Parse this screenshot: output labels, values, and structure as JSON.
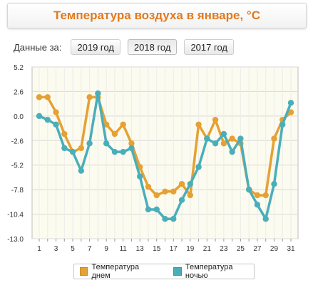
{
  "title": "Температура воздуха в январе, °C",
  "filter": {
    "label": "Данные за:",
    "years": [
      "2019 год",
      "2018 год",
      "2017 год"
    ],
    "active": "2018 год"
  },
  "colors": {
    "day": "#e5a133",
    "night": "#4aaeba",
    "title": "#e07a1e",
    "plot_bg": "#fcfbef"
  },
  "chart_data": {
    "type": "line",
    "x": [
      1,
      2,
      3,
      4,
      5,
      6,
      7,
      8,
      9,
      10,
      11,
      12,
      13,
      14,
      15,
      16,
      17,
      18,
      19,
      20,
      21,
      22,
      23,
      24,
      25,
      26,
      27,
      28,
      29,
      30,
      31
    ],
    "x_ticks": [
      1,
      3,
      5,
      7,
      9,
      11,
      13,
      15,
      17,
      19,
      21,
      23,
      25,
      27,
      29,
      31
    ],
    "y_ticks": [
      5.2,
      2.6,
      0.0,
      -2.6,
      -5.2,
      -7.8,
      -10.4,
      -13.0
    ],
    "y_tick_labels": [
      "5.2",
      "2.6",
      "0.0",
      "-2.6",
      "-5.2",
      "-7.8",
      "-10.4",
      "-13.0"
    ],
    "ylim": [
      -13.0,
      5.2
    ],
    "grid": true,
    "legend_position": "bottom",
    "series": [
      {
        "name": "Температура днем",
        "color": "#e5a133",
        "values": [
          2.0,
          2.0,
          0.4,
          -1.9,
          -3.8,
          -3.4,
          2.0,
          2.0,
          -0.9,
          -1.9,
          -0.9,
          -2.9,
          -5.4,
          -7.5,
          -8.4,
          -8.0,
          -8.0,
          -7.2,
          -8.4,
          -0.9,
          -2.4,
          -0.4,
          -2.9,
          -2.4,
          -2.9,
          -7.8,
          -8.4,
          -8.4,
          -2.4,
          -0.4,
          0.4
        ]
      },
      {
        "name": "Температура ночью",
        "color": "#4aaeba",
        "values": [
          0.0,
          -0.4,
          -0.9,
          -3.4,
          -3.8,
          -5.8,
          -2.9,
          2.4,
          -2.9,
          -3.8,
          -3.8,
          -3.4,
          -6.4,
          -9.9,
          -9.9,
          -10.9,
          -10.9,
          -8.9,
          -7.2,
          -5.4,
          -2.4,
          -2.9,
          -1.9,
          -3.8,
          -2.4,
          -7.8,
          -9.4,
          -10.9,
          -7.2,
          -0.9,
          1.4
        ]
      }
    ]
  }
}
